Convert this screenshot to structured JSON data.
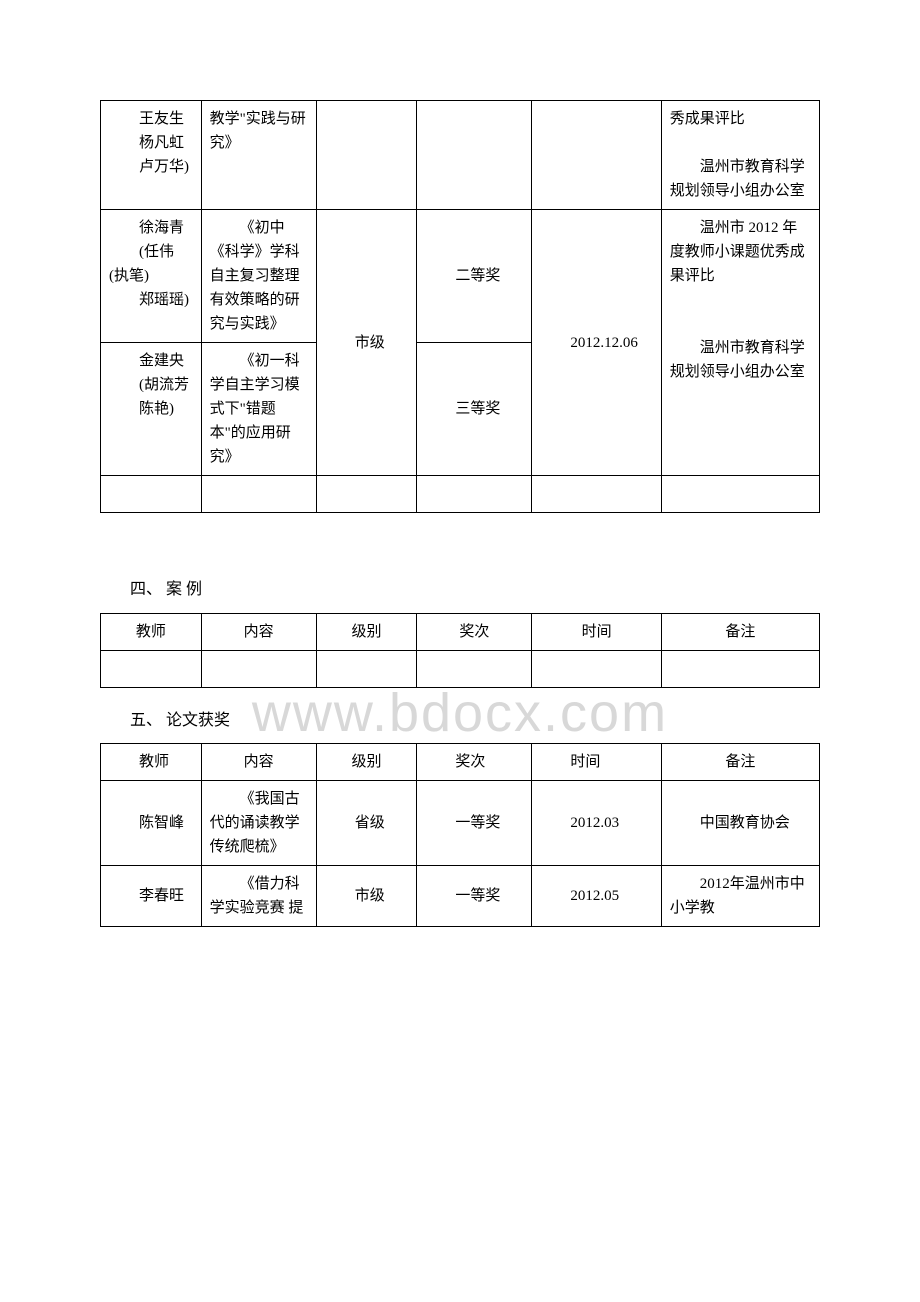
{
  "watermark": "www.bdocx.com",
  "table1": {
    "row1": {
      "names": [
        "王友生",
        "杨凡虹",
        "卢万华)"
      ],
      "content": "教学\"实践与研究》",
      "note": [
        "秀成果评比",
        "温州市教育科学规划领导小组办公室"
      ]
    },
    "row2": {
      "names": [
        "徐海青",
        "(任伟(执笔)",
        "郑瑶瑶)"
      ],
      "content": "《初中《科学》学科自主复习整理有效策略的研究与实践》",
      "level": "市级",
      "award": "二等奖",
      "date": "2012.12.06",
      "note": [
        "温州市 2012 年度教师小课题优秀成果评比",
        "温州市教育科学规划领导小组办公室"
      ]
    },
    "row3": {
      "names": [
        "金建央",
        "(胡流芳",
        "陈艳)"
      ],
      "content": "《初一科学自主学习模式下\"错题本\"的应用研究》",
      "award": "三等奖"
    }
  },
  "section4": {
    "heading": "四、 案 例",
    "headers": [
      "教师",
      "内容",
      "级别",
      "奖次",
      "时间",
      "备注"
    ]
  },
  "section5": {
    "heading": "五、 论文获奖",
    "headers": [
      "教师",
      "内容",
      "级别",
      "奖次",
      "时间",
      "备注"
    ],
    "row1": {
      "name": "陈智峰",
      "content": "《我国古代的诵读教学传统爬梳》",
      "level": "省级",
      "award": "一等奖",
      "date": "2012.03",
      "note": "中国教育协会"
    },
    "row2": {
      "name": "李春旺",
      "content": "《借力科学实验竞赛 提",
      "level": "市级",
      "award": "一等奖",
      "date": "2012.05",
      "note": "2012年温州市中小学教"
    }
  }
}
